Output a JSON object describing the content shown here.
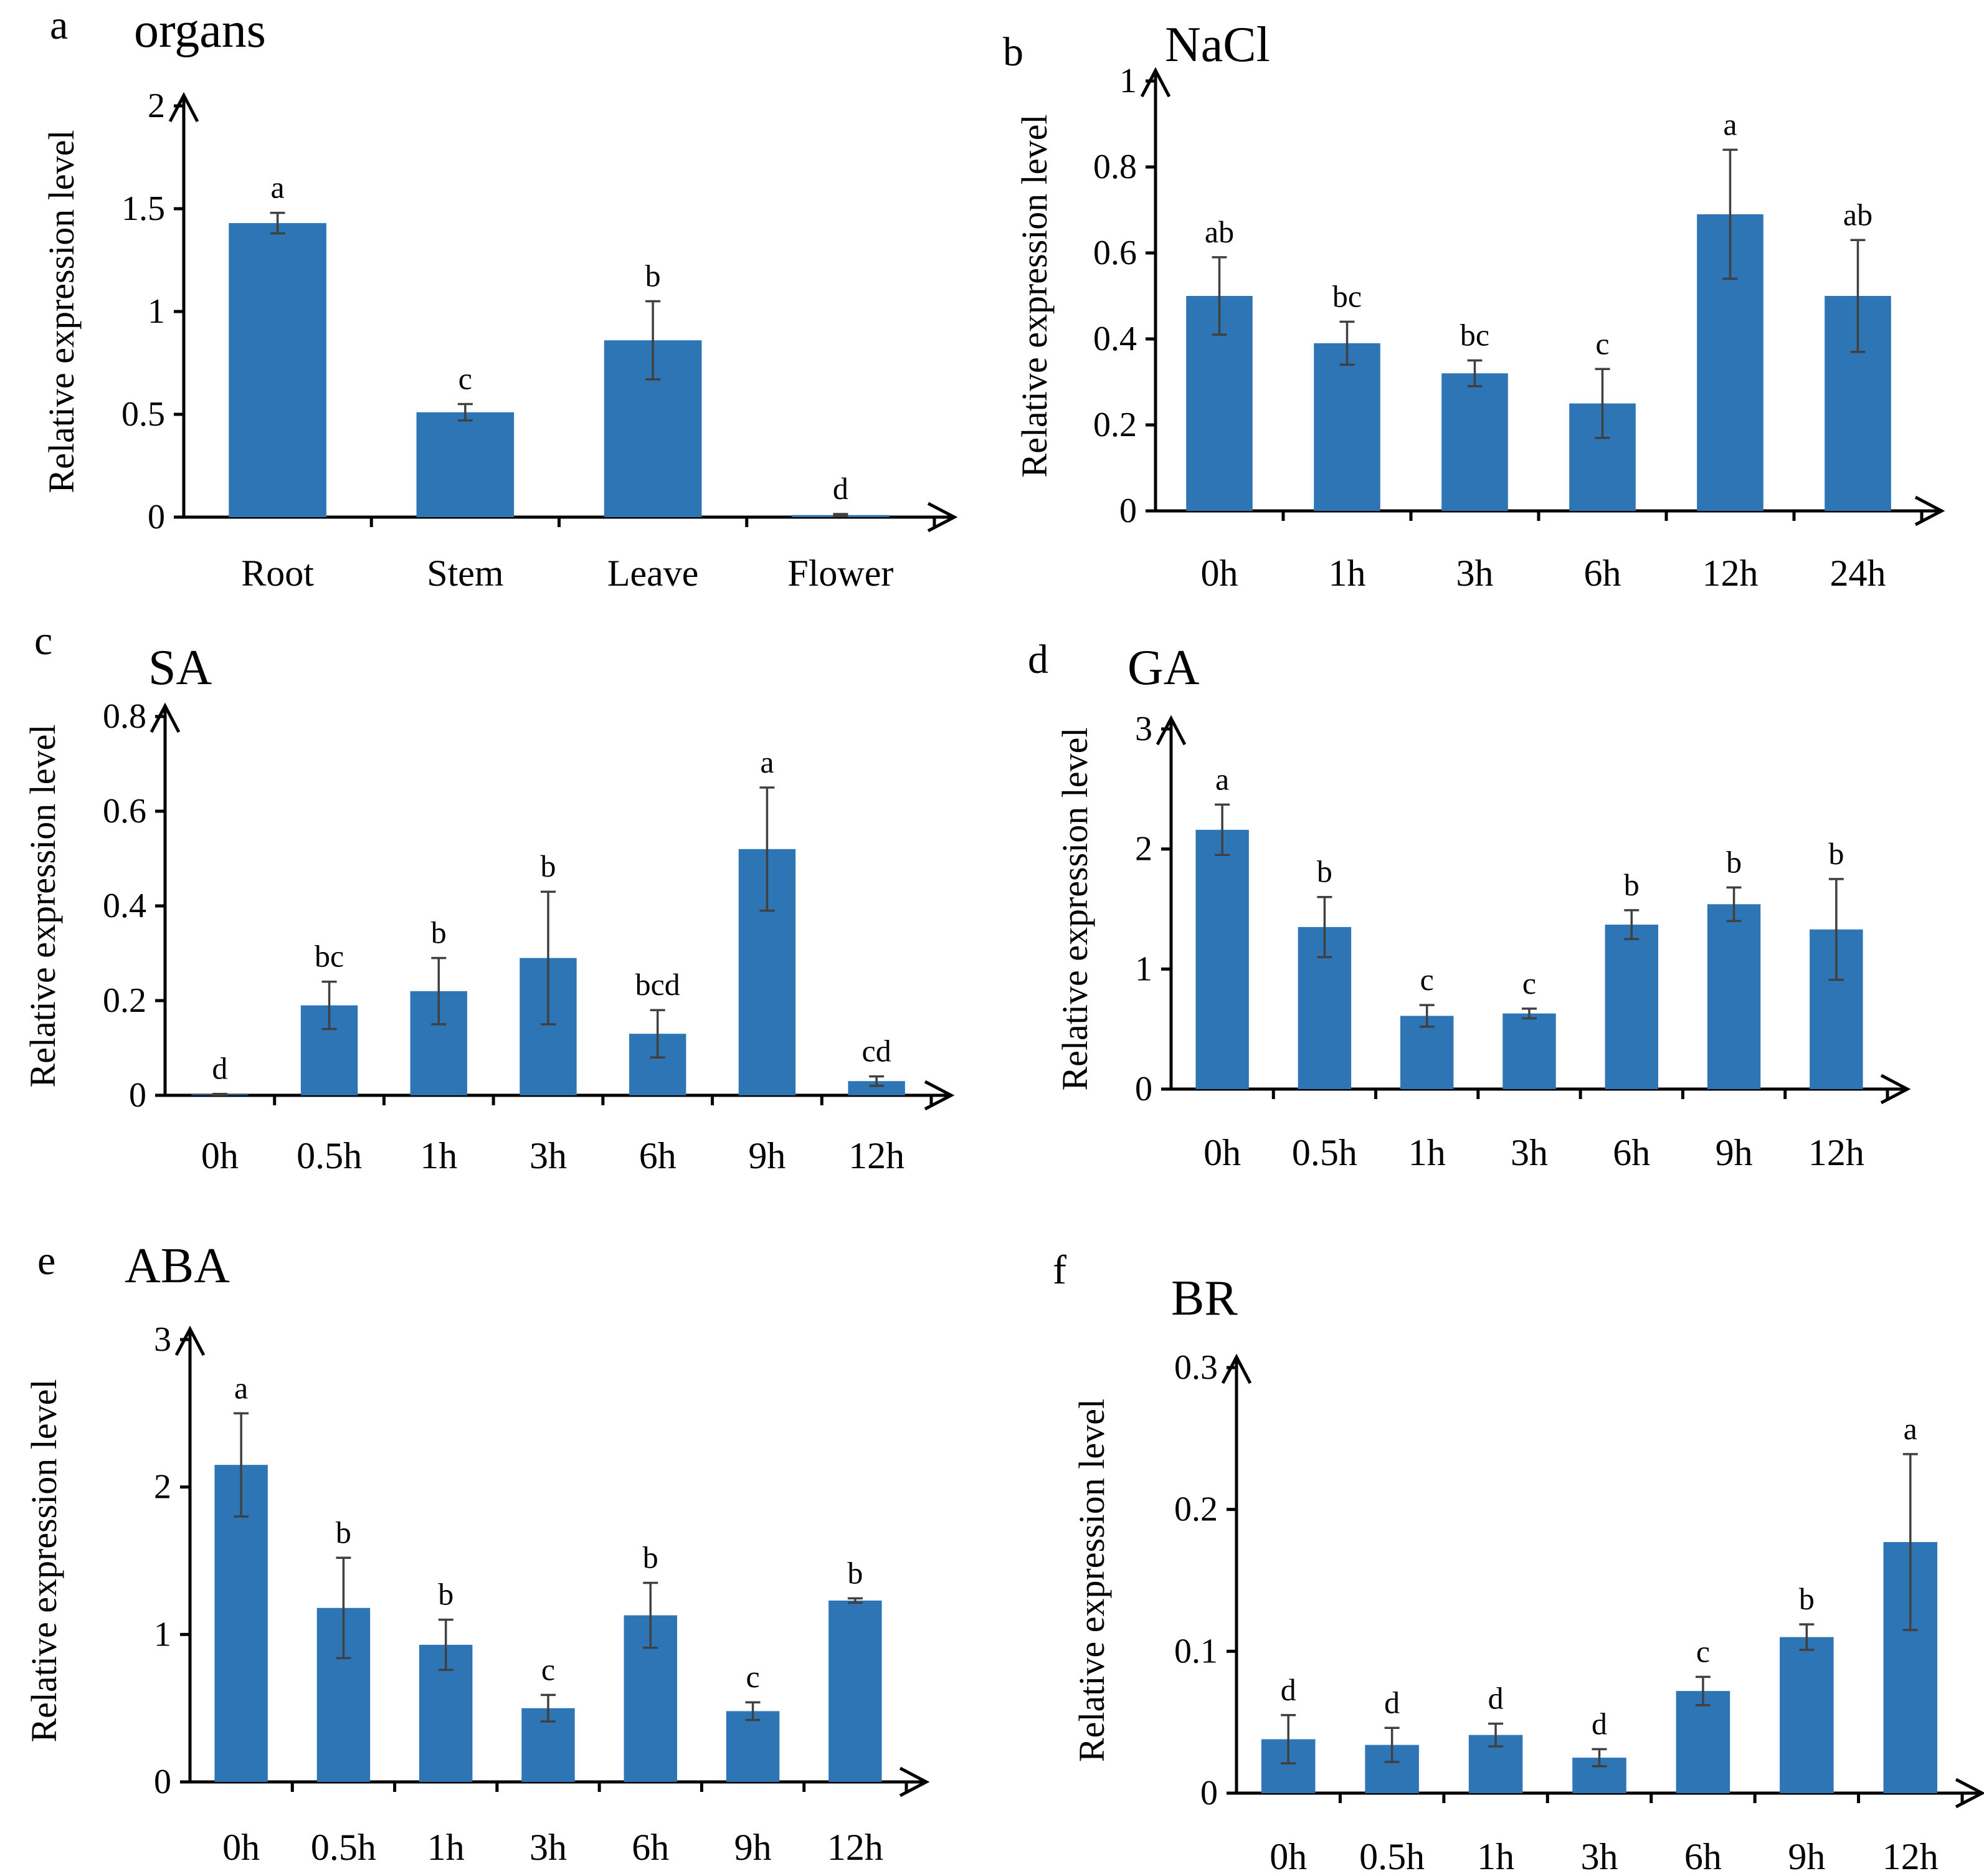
{
  "colors": {
    "bar": "#2E75B6",
    "axis": "#000000",
    "error_bar": "#404040",
    "background": "#ffffff"
  },
  "chart_data": [
    {
      "type": "bar",
      "letter": "a",
      "title": "organs",
      "ylabel": "Relative expression level",
      "xlabel": "",
      "ylim": [
        0,
        2
      ],
      "yticks": [
        "0",
        "0.5",
        "1",
        "1.5",
        "2"
      ],
      "categories": [
        "Root",
        "Stem",
        "Leave",
        "Flower"
      ],
      "values": [
        1.43,
        0.51,
        0.86,
        0.01
      ],
      "errors": [
        0.05,
        0.04,
        0.19,
        0.005
      ],
      "significance": [
        "a",
        "c",
        "b",
        "d"
      ]
    },
    {
      "type": "bar",
      "letter": "b",
      "title": "NaCl",
      "ylabel": "Relative expression level",
      "xlabel": "",
      "ylim": [
        0,
        1
      ],
      "yticks": [
        "0",
        "0.2",
        "0.4",
        "0.6",
        "0.8",
        "1"
      ],
      "categories": [
        "0h",
        "1h",
        "3h",
        "6h",
        "12h",
        "24h"
      ],
      "values": [
        0.5,
        0.39,
        0.32,
        0.25,
        0.69,
        0.5
      ],
      "errors": [
        0.09,
        0.05,
        0.03,
        0.08,
        0.15,
        0.13
      ],
      "significance": [
        "ab",
        "bc",
        "bc",
        "c",
        "a",
        "ab"
      ]
    },
    {
      "type": "bar",
      "letter": "c",
      "title": "SA",
      "ylabel": "Relative expression level",
      "xlabel": "",
      "ylim": [
        0,
        0.8
      ],
      "yticks": [
        "0",
        "0.2",
        "0.4",
        "0.6",
        "0.8"
      ],
      "categories": [
        "0h",
        "0.5h",
        "1h",
        "3h",
        "6h",
        "9h",
        "12h"
      ],
      "values": [
        0.002,
        0.19,
        0.22,
        0.29,
        0.13,
        0.52,
        0.03
      ],
      "errors": [
        0.001,
        0.05,
        0.07,
        0.14,
        0.05,
        0.13,
        0.01
      ],
      "significance": [
        "d",
        "bc",
        "b",
        "b",
        "bcd",
        "a",
        "cd"
      ]
    },
    {
      "type": "bar",
      "letter": "d",
      "title": "GA",
      "ylabel": "Relative expression level",
      "xlabel": "",
      "ylim": [
        0,
        3
      ],
      "yticks": [
        "0",
        "1",
        "2",
        "3"
      ],
      "categories": [
        "0h",
        "0.5h",
        "1h",
        "3h",
        "6h",
        "9h",
        "12h"
      ],
      "values": [
        2.16,
        1.35,
        0.61,
        0.63,
        1.37,
        1.54,
        1.33
      ],
      "errors": [
        0.21,
        0.25,
        0.09,
        0.04,
        0.12,
        0.14,
        0.42
      ],
      "significance": [
        "a",
        "b",
        "c",
        "c",
        "b",
        "b",
        "b"
      ]
    },
    {
      "type": "bar",
      "letter": "e",
      "title": "ABA",
      "ylabel": "Relative expression level",
      "xlabel": "",
      "ylim": [
        0,
        3
      ],
      "yticks": [
        "0",
        "1",
        "2",
        "3"
      ],
      "categories": [
        "0h",
        "0.5h",
        "1h",
        "3h",
        "6h",
        "9h",
        "12h"
      ],
      "values": [
        2.15,
        1.18,
        0.93,
        0.5,
        1.13,
        0.48,
        1.23
      ],
      "errors": [
        0.35,
        0.34,
        0.17,
        0.09,
        0.22,
        0.06,
        0.015
      ],
      "significance": [
        "a",
        "b",
        "b",
        "c",
        "b",
        "c",
        "b"
      ]
    },
    {
      "type": "bar",
      "letter": "f",
      "title": "BR",
      "ylabel": "Relative expression level",
      "xlabel": "",
      "ylim": [
        0,
        0.3
      ],
      "yticks": [
        "0",
        "0.1",
        "0.2",
        "0.3"
      ],
      "categories": [
        "0h",
        "0.5h",
        "1h",
        "3h",
        "6h",
        "9h",
        "12h"
      ],
      "values": [
        0.038,
        0.034,
        0.041,
        0.025,
        0.072,
        0.11,
        0.177
      ],
      "errors": [
        0.017,
        0.012,
        0.008,
        0.006,
        0.01,
        0.009,
        0.062
      ],
      "significance": [
        "d",
        "d",
        "d",
        "d",
        "c",
        "b",
        "a"
      ]
    }
  ]
}
